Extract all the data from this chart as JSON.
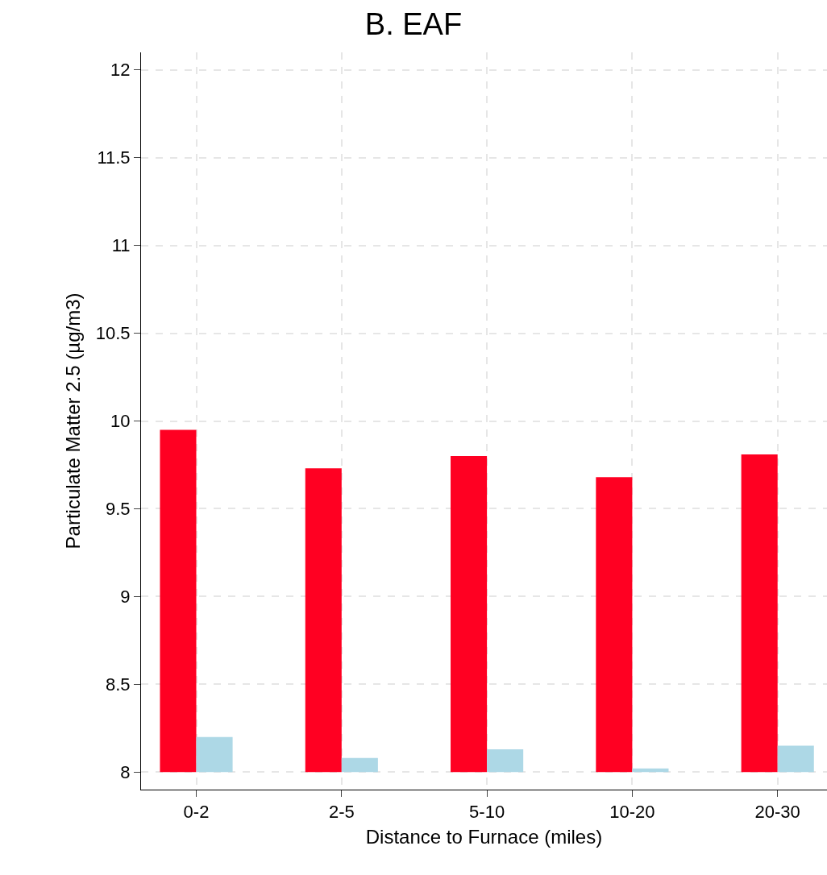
{
  "chart_data": {
    "type": "bar",
    "title": "B. EAF",
    "xlabel": "Distance to Furnace (miles)",
    "ylabel": "Particulate Matter 2.5 (µg/m3)",
    "categories": [
      "0-2",
      "2-5",
      "5-10",
      "10-20",
      "20-30"
    ],
    "series": [
      {
        "color": "#ff0022",
        "base": [
          8,
          8,
          8,
          8,
          8
        ],
        "values": [
          1.95,
          1.73,
          1.8,
          1.68,
          1.81
        ]
      },
      {
        "color": "#add8e6",
        "base": [
          8,
          8,
          8,
          8,
          8
        ],
        "values": [
          0.2,
          0.08,
          0.13,
          0.02,
          0.15
        ]
      }
    ],
    "ylim": [
      7.9,
      12.1
    ],
    "yticks": [
      8,
      8.5,
      9,
      9.5,
      10,
      10.5,
      11,
      11.5,
      12
    ],
    "grid": true
  }
}
